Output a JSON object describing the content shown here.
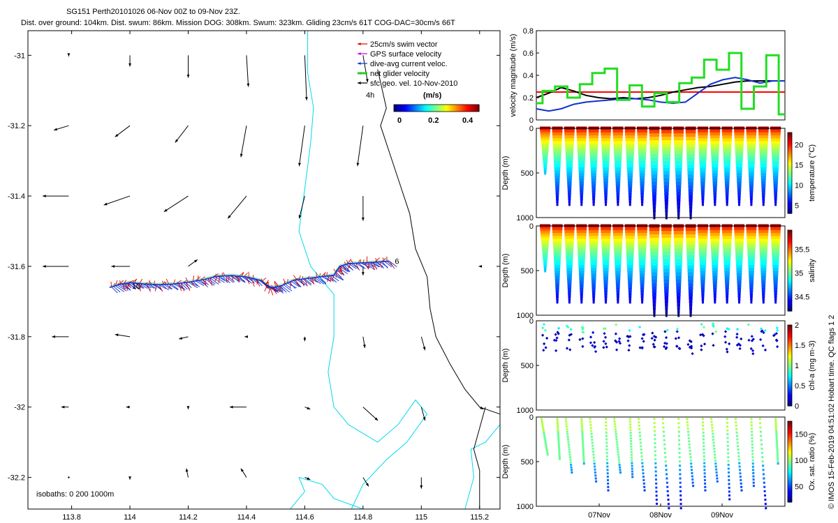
{
  "header": {
    "line1": "SG151 Perth20101026 06-Nov 00Z to 09-Nov 23Z.",
    "line2": "Dist. over ground: 104km. Dist. swum: 86km. Mission DOG: 308km. Swum: 323km. Gliding 23cm/s 61T COG-DAC=30cm/s 66T"
  },
  "footer_note": "© IMOS 15-Feb-2019 04:51:02 Hobart time. QC flags 1  2",
  "colors": {
    "swim": "#e00000",
    "gps": "#cc00cc",
    "dac": "#1030d0",
    "net": "#22cc22",
    "coast": "#000000",
    "isobath": "#00d8f0",
    "redline": "#ff0000"
  },
  "chart_data": [
    {
      "type": "map",
      "name": "track-map",
      "xlim": [
        113.65,
        115.27
      ],
      "ylim": [
        -32.29,
        -30.93
      ],
      "x_ticks": [
        113.8,
        114.0,
        114.2,
        114.4,
        114.6,
        114.8,
        115.0,
        115.2
      ],
      "x_tick_labels": [
        "113.8",
        "114",
        "114.2",
        "114.4",
        "114.6",
        "114.8",
        "115",
        "115.2"
      ],
      "y_ticks": [
        -31.0,
        -31.2,
        -31.4,
        -31.6,
        -31.8,
        -32.0,
        -32.2
      ],
      "y_tick_labels": [
        "-31",
        "-31.2",
        "-31.4",
        "-31.6",
        "-31.8",
        "-32",
        "-32.2"
      ],
      "legend": [
        {
          "label": "25cm/s swim vector",
          "color": "#e00000"
        },
        {
          "label": "GPS surface velocity",
          "color": "#cc00cc"
        },
        {
          "label": "dive-avg current veloc.",
          "color": "#1030d0"
        },
        {
          "label": "net glider velocity",
          "color": "#22cc22"
        },
        {
          "label": "sfc geo. vel. 10-Nov-2010",
          "color": "#000000"
        }
      ],
      "legend_scale_label": "4h",
      "colorbar": {
        "title": "(m/s)",
        "ticks": [
          0,
          0.2,
          0.4
        ],
        "tick_labels": [
          "0",
          "0.2",
          "0.4"
        ],
        "range": [
          0,
          0.5
        ]
      },
      "isobath_note": "isobaths: 0   200  1000m",
      "track_start_label": "6",
      "track_end_label": "10",
      "track": [
        [
          114.89,
          -31.585
        ],
        [
          114.84,
          -31.588
        ],
        [
          114.8,
          -31.59
        ],
        [
          114.75,
          -31.592
        ],
        [
          114.72,
          -31.6
        ],
        [
          114.7,
          -31.625
        ],
        [
          114.65,
          -31.63
        ],
        [
          114.6,
          -31.635
        ],
        [
          114.56,
          -31.64
        ],
        [
          114.52,
          -31.655
        ],
        [
          114.49,
          -31.66
        ],
        [
          114.47,
          -31.655
        ],
        [
          114.45,
          -31.64
        ],
        [
          114.4,
          -31.63
        ],
        [
          114.35,
          -31.626
        ],
        [
          114.3,
          -31.628
        ],
        [
          114.25,
          -31.638
        ],
        [
          114.2,
          -31.645
        ],
        [
          114.15,
          -31.65
        ],
        [
          114.1,
          -31.652
        ],
        [
          114.05,
          -31.65
        ],
        [
          114.0,
          -31.646
        ],
        [
          113.97,
          -31.65
        ],
        [
          113.93,
          -31.66
        ]
      ],
      "geo_vectors": [
        {
          "lon": 113.79,
          "lat": -31.0,
          "u": 0.0,
          "v": -0.01
        },
        {
          "lon": 114.0,
          "lat": -31.0,
          "u": 0.0,
          "v": -0.1
        },
        {
          "lon": 114.2,
          "lat": -31.0,
          "u": 0.0,
          "v": -0.2
        },
        {
          "lon": 114.4,
          "lat": -31.0,
          "u": 0.02,
          "v": -0.28
        },
        {
          "lon": 114.6,
          "lat": -31.0,
          "u": 0.02,
          "v": -0.4
        },
        {
          "lon": 114.8,
          "lat": -31.0,
          "u": 0.05,
          "v": -0.24
        },
        {
          "lon": 113.79,
          "lat": -31.2,
          "u": -0.16,
          "v": -0.04
        },
        {
          "lon": 114.0,
          "lat": -31.2,
          "u": -0.16,
          "v": -0.1
        },
        {
          "lon": 114.2,
          "lat": -31.2,
          "u": -0.14,
          "v": -0.15
        },
        {
          "lon": 114.4,
          "lat": -31.2,
          "u": -0.06,
          "v": -0.28
        },
        {
          "lon": 114.6,
          "lat": -31.2,
          "u": -0.06,
          "v": -0.36
        },
        {
          "lon": 114.8,
          "lat": -31.2,
          "u": -0.06,
          "v": -0.36
        },
        {
          "lon": 113.79,
          "lat": -31.4,
          "u": -0.28,
          "v": 0.0
        },
        {
          "lon": 114.0,
          "lat": -31.4,
          "u": -0.28,
          "v": -0.08
        },
        {
          "lon": 114.2,
          "lat": -31.4,
          "u": -0.26,
          "v": -0.14
        },
        {
          "lon": 114.4,
          "lat": -31.4,
          "u": -0.2,
          "v": -0.2
        },
        {
          "lon": 114.6,
          "lat": -31.4,
          "u": -0.06,
          "v": -0.2
        },
        {
          "lon": 114.8,
          "lat": -31.4,
          "u": 0.0,
          "v": -0.22
        },
        {
          "lon": 113.79,
          "lat": -31.6,
          "u": -0.28,
          "v": 0.0
        },
        {
          "lon": 114.0,
          "lat": -31.6,
          "u": -0.2,
          "v": 0.0
        },
        {
          "lon": 114.2,
          "lat": -31.6,
          "u": 0.1,
          "v": 0.06
        },
        {
          "lon": 114.8,
          "lat": -31.6,
          "u": 0.0,
          "v": -0.08
        },
        {
          "lon": 115.2,
          "lat": -31.6,
          "u": -0.01,
          "v": 0.0
        },
        {
          "lon": 113.79,
          "lat": -31.8,
          "u": -0.18,
          "v": 0.0
        },
        {
          "lon": 114.0,
          "lat": -31.8,
          "u": -0.16,
          "v": 0.02
        },
        {
          "lon": 114.2,
          "lat": -31.8,
          "u": -0.1,
          "v": -0.02
        },
        {
          "lon": 114.4,
          "lat": -31.8,
          "u": -0.02,
          "v": 0.0
        },
        {
          "lon": 114.6,
          "lat": -31.8,
          "u": 0.0,
          "v": -0.04
        },
        {
          "lon": 114.8,
          "lat": -31.8,
          "u": 0.02,
          "v": -0.1
        },
        {
          "lon": 115.0,
          "lat": -31.8,
          "u": 0.04,
          "v": -0.12
        },
        {
          "lon": 113.79,
          "lat": -32.0,
          "u": -0.08,
          "v": 0.0
        },
        {
          "lon": 114.0,
          "lat": -32.0,
          "u": -0.04,
          "v": 0.0
        },
        {
          "lon": 114.2,
          "lat": -32.0,
          "u": 0.0,
          "v": -0.02
        },
        {
          "lon": 114.4,
          "lat": -32.0,
          "u": -0.18,
          "v": 0.0
        },
        {
          "lon": 114.6,
          "lat": -32.0,
          "u": 0.06,
          "v": -0.02
        },
        {
          "lon": 114.8,
          "lat": -32.0,
          "u": 0.16,
          "v": -0.12
        },
        {
          "lon": 115.0,
          "lat": -32.0,
          "u": 0.04,
          "v": -0.12
        },
        {
          "lon": 115.2,
          "lat": -32.0,
          "u": 0.04,
          "v": -0.02
        },
        {
          "lon": 113.79,
          "lat": -32.2,
          "u": 0.0,
          "v": 0.0
        },
        {
          "lon": 114.0,
          "lat": -32.2,
          "u": 0.0,
          "v": -0.02
        },
        {
          "lon": 114.2,
          "lat": -32.2,
          "u": -0.02,
          "v": 0.08
        },
        {
          "lon": 114.4,
          "lat": -32.2,
          "u": -0.06,
          "v": 0.08
        },
        {
          "lon": 114.6,
          "lat": -32.2,
          "u": 0.06,
          "v": -0.02
        },
        {
          "lon": 114.8,
          "lat": -32.2,
          "u": 0.06,
          "v": -0.08
        },
        {
          "lon": 115.0,
          "lat": -32.2,
          "u": 0.0,
          "v": -0.1
        }
      ]
    },
    {
      "type": "line",
      "name": "velocity-magnitude",
      "ylabel": "velocity magnitude (m/s)",
      "ylim": [
        0,
        0.8
      ],
      "y_ticks": [
        0,
        0.2,
        0.4,
        0.6,
        0.8
      ],
      "y_tick_labels": [
        "0",
        "0.2",
        "0.4",
        "0.6",
        "0.8"
      ],
      "xlim": [
        0,
        4.0
      ],
      "threshold": 0.25,
      "series": [
        {
          "name": "black",
          "x": [
            0.0,
            0.2,
            0.4,
            0.6,
            0.8,
            1.0,
            1.2,
            1.4,
            1.6,
            1.8,
            2.0,
            2.2,
            2.4,
            2.6,
            2.8,
            3.0,
            3.2,
            3.4,
            3.6,
            3.8,
            4.0
          ],
          "values": [
            0.2,
            0.24,
            0.29,
            0.26,
            0.22,
            0.2,
            0.19,
            0.2,
            0.19,
            0.2,
            0.22,
            0.25,
            0.27,
            0.29,
            0.3,
            0.32,
            0.34,
            0.35,
            0.35,
            0.35,
            0.35
          ]
        },
        {
          "name": "blue",
          "x": [
            0.0,
            0.2,
            0.4,
            0.6,
            0.8,
            1.0,
            1.2,
            1.4,
            1.6,
            1.8,
            2.0,
            2.2,
            2.4,
            2.6,
            2.8,
            3.0,
            3.2,
            3.4,
            3.6,
            3.8,
            4.0
          ],
          "values": [
            0.1,
            0.08,
            0.1,
            0.14,
            0.16,
            0.17,
            0.18,
            0.19,
            0.19,
            0.18,
            0.16,
            0.15,
            0.16,
            0.24,
            0.32,
            0.36,
            0.38,
            0.36,
            0.33,
            0.35,
            0.35
          ]
        },
        {
          "name": "green",
          "x": [
            0.0,
            0.1,
            0.1,
            0.3,
            0.3,
            0.5,
            0.5,
            0.7,
            0.7,
            0.9,
            0.9,
            1.1,
            1.1,
            1.3,
            1.3,
            1.5,
            1.5,
            1.7,
            1.7,
            1.9,
            1.9,
            2.1,
            2.1,
            2.3,
            2.3,
            2.5,
            2.5,
            2.7,
            2.7,
            2.9,
            2.9,
            3.1,
            3.1,
            3.3,
            3.3,
            3.5,
            3.5,
            3.7,
            3.7,
            3.9,
            3.9,
            4.0
          ],
          "values": [
            0.15,
            0.15,
            0.26,
            0.26,
            0.3,
            0.3,
            0.2,
            0.2,
            0.32,
            0.32,
            0.42,
            0.42,
            0.46,
            0.46,
            0.18,
            0.18,
            0.31,
            0.31,
            0.12,
            0.12,
            0.24,
            0.24,
            0.16,
            0.16,
            0.33,
            0.33,
            0.38,
            0.38,
            0.54,
            0.54,
            0.45,
            0.45,
            0.6,
            0.6,
            0.1,
            0.1,
            0.3,
            0.3,
            0.58,
            0.58,
            0.05,
            0.05
          ]
        }
      ]
    },
    {
      "type": "heatmap",
      "name": "temperature-section",
      "ylabel": "Depth (m)",
      "ylim": [
        0,
        1000
      ],
      "y_tick_labels": [
        "0",
        "500",
        "1000"
      ],
      "colorbar_label": "temperature (°C)",
      "cbar_range": [
        3,
        23
      ],
      "cbar_ticks": [
        5,
        10,
        15,
        20
      ],
      "cbar_tick_labels": [
        "5",
        "10",
        "15",
        "20"
      ],
      "n_dives": 20,
      "dive_depths": [
        500,
        850,
        850,
        850,
        850,
        850,
        850,
        850,
        850,
        1000,
        1000,
        1000,
        1000,
        850,
        850,
        850,
        850,
        850,
        850,
        850
      ],
      "surface_value": 22,
      "deep_value": 4
    },
    {
      "type": "heatmap",
      "name": "salinity-section",
      "ylabel": "Depth (m)",
      "ylim": [
        0,
        1000
      ],
      "y_tick_labels": [
        "0",
        "500",
        "1000"
      ],
      "colorbar_label": "salinity",
      "cbar_range": [
        34.2,
        35.9
      ],
      "cbar_ticks": [
        34.5,
        35,
        35.5
      ],
      "cbar_tick_labels": [
        "34.5",
        "35",
        "35.5"
      ],
      "n_dives": 20,
      "dive_depths": [
        500,
        850,
        850,
        850,
        850,
        850,
        850,
        850,
        850,
        1000,
        1000,
        1000,
        1000,
        850,
        850,
        850,
        850,
        850,
        850,
        850
      ],
      "surface_value": 35.8,
      "deep_value": 34.3
    },
    {
      "type": "scatter",
      "name": "chla-section",
      "ylabel": "Depth (m)",
      "ylim": [
        0,
        1000
      ],
      "y_tick_labels": [
        "0",
        "500",
        "1000"
      ],
      "colorbar_label": "chl-a (mg m-3)",
      "cbar_range": [
        0,
        2
      ],
      "cbar_ticks": [
        0,
        0.5,
        1,
        1.5,
        2
      ],
      "cbar_tick_labels": [
        "0",
        "0.5",
        "1",
        "1.5",
        "2"
      ],
      "n_dives": 20,
      "max_depth": 300
    },
    {
      "type": "scatter",
      "name": "oxygen-section",
      "ylabel": "Depth (m)",
      "ylim": [
        0,
        1000
      ],
      "y_tick_labels": [
        "0",
        "500",
        "1000"
      ],
      "colorbar_label": "Ox. sat. ratio (%)",
      "cbar_range": [
        20,
        175
      ],
      "cbar_ticks": [
        50,
        100,
        150
      ],
      "cbar_tick_labels": [
        "50",
        "100",
        "150"
      ],
      "x_tick_labels": [
        "07Nov",
        "08Nov",
        "09Nov"
      ],
      "n_dives": 20,
      "dive_depths": [
        400,
        450,
        600,
        500,
        700,
        800,
        600,
        650,
        800,
        950,
        1000,
        1000,
        750,
        800,
        700,
        900,
        800,
        750,
        1000,
        500
      ]
    }
  ]
}
